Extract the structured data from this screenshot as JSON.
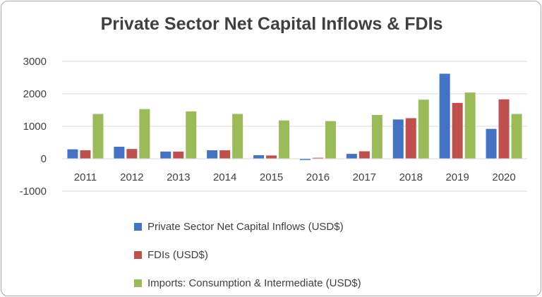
{
  "chart_data": {
    "type": "bar",
    "title": "Private Sector Net Capital Inflows & FDIs",
    "categories": [
      "2011",
      "2012",
      "2013",
      "2014",
      "2015",
      "2016",
      "2017",
      "2018",
      "2019",
      "2020"
    ],
    "ylim": [
      -1000,
      3000
    ],
    "yticks": [
      3000,
      2000,
      1000,
      0,
      -1000
    ],
    "grid": true,
    "legend_position": "bottom",
    "series": [
      {
        "name": "Private Sector Net Capital Inflows (USD$)",
        "color": "#4472c4",
        "values": [
          290,
          370,
          220,
          260,
          110,
          -40,
          150,
          1210,
          2620,
          920
        ]
      },
      {
        "name": "FDIs (USD$)",
        "color": "#c0504d",
        "values": [
          260,
          300,
          220,
          260,
          100,
          30,
          230,
          1250,
          1720,
          1830
        ]
      },
      {
        "name": "Imports: Consumption & Intermediate (USD$)",
        "color": "#9bbb59",
        "values": [
          1380,
          1530,
          1460,
          1380,
          1180,
          1160,
          1350,
          1820,
          2040,
          1380
        ]
      }
    ]
  }
}
